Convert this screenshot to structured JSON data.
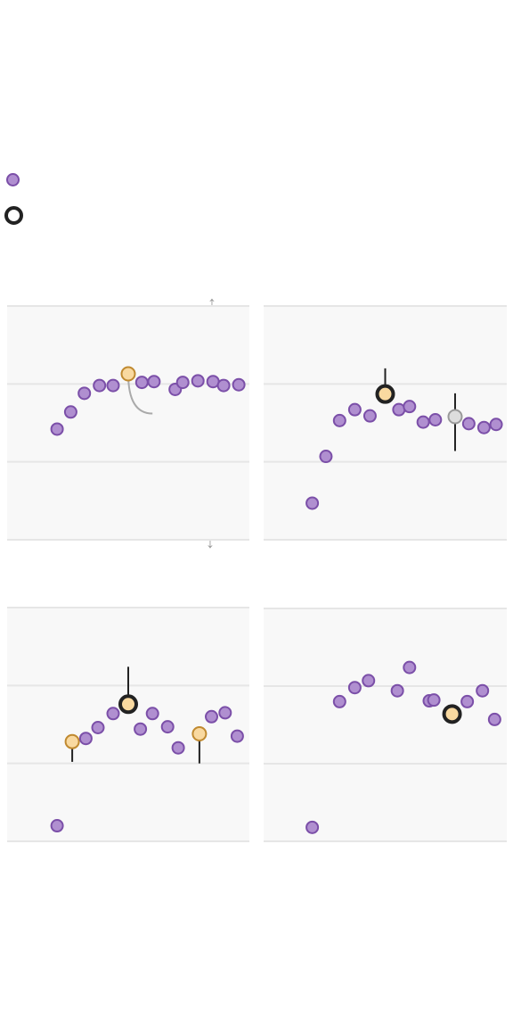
{
  "legend": {
    "items": [
      {
        "icon": "purple-dot-icon",
        "label": ""
      },
      {
        "icon": "black-ring-icon",
        "label": ""
      }
    ]
  },
  "colors": {
    "point_fill": "#b08fd0",
    "point_stroke": "#7b4fa8",
    "highlight_fill": "#f9d9a0",
    "highlight_stroke": "#c08a30",
    "ring_stroke": "#222222",
    "grey_fill": "#dddddd",
    "grey_stroke": "#999999",
    "panel_bg": "#f8f8f8",
    "grid": "#e6e6e6"
  },
  "chart_data": [
    {
      "type": "scatter",
      "panel": "top-left",
      "title": "",
      "xlim": [
        0,
        16
      ],
      "ylim": [
        0,
        3
      ],
      "grid": true,
      "points": [
        {
          "x": 3.3,
          "y": 1.42
        },
        {
          "x": 4.2,
          "y": 1.64
        },
        {
          "x": 5.1,
          "y": 1.88
        },
        {
          "x": 6.1,
          "y": 1.98
        },
        {
          "x": 7.0,
          "y": 1.98
        },
        {
          "x": 8.0,
          "y": 2.13,
          "style": "highlight"
        },
        {
          "x": 8.9,
          "y": 2.02
        },
        {
          "x": 9.7,
          "y": 2.03
        },
        {
          "x": 11.1,
          "y": 1.93
        },
        {
          "x": 11.6,
          "y": 2.02
        },
        {
          "x": 12.6,
          "y": 2.04
        },
        {
          "x": 13.6,
          "y": 2.03
        },
        {
          "x": 14.3,
          "y": 1.98
        },
        {
          "x": 15.3,
          "y": 1.99
        }
      ],
      "annotations": [
        {
          "type": "curve",
          "from": {
            "x": 8.0,
            "y": 2.13
          },
          "to": {
            "x": 9.6,
            "y": 1.62
          }
        }
      ]
    },
    {
      "type": "scatter",
      "panel": "top-right",
      "title": "",
      "xlim": [
        0,
        16
      ],
      "ylim": [
        0,
        3
      ],
      "grid": true,
      "points": [
        {
          "x": 3.2,
          "y": 0.47
        },
        {
          "x": 4.1,
          "y": 1.07
        },
        {
          "x": 5.0,
          "y": 1.53
        },
        {
          "x": 6.0,
          "y": 1.67
        },
        {
          "x": 7.0,
          "y": 1.59
        },
        {
          "x": 8.0,
          "y": 1.87,
          "style": "ring",
          "error": [
            1.87,
            2.2
          ]
        },
        {
          "x": 8.9,
          "y": 1.67
        },
        {
          "x": 9.6,
          "y": 1.71
        },
        {
          "x": 10.5,
          "y": 1.51
        },
        {
          "x": 11.3,
          "y": 1.54
        },
        {
          "x": 12.6,
          "y": 1.58,
          "style": "grey",
          "error": [
            1.14,
            1.88
          ]
        },
        {
          "x": 13.5,
          "y": 1.49
        },
        {
          "x": 14.5,
          "y": 1.44
        },
        {
          "x": 15.3,
          "y": 1.48
        }
      ]
    },
    {
      "type": "scatter",
      "panel": "bottom-left",
      "title": "",
      "xlim": [
        0,
        16
      ],
      "ylim": [
        0,
        3
      ],
      "grid": true,
      "points": [
        {
          "x": 3.3,
          "y": 0.2
        },
        {
          "x": 4.3,
          "y": 1.28,
          "style": "highlight",
          "error": [
            1.02,
            1.28
          ]
        },
        {
          "x": 5.2,
          "y": 1.32
        },
        {
          "x": 6.0,
          "y": 1.46
        },
        {
          "x": 7.0,
          "y": 1.64
        },
        {
          "x": 8.0,
          "y": 1.76,
          "style": "ring",
          "error": [
            1.76,
            2.24
          ]
        },
        {
          "x": 8.8,
          "y": 1.44
        },
        {
          "x": 9.6,
          "y": 1.64
        },
        {
          "x": 10.6,
          "y": 1.47
        },
        {
          "x": 11.3,
          "y": 1.2
        },
        {
          "x": 12.7,
          "y": 1.38,
          "style": "highlight",
          "error": [
            1.0,
            1.38
          ]
        },
        {
          "x": 13.5,
          "y": 1.6
        },
        {
          "x": 14.4,
          "y": 1.65
        },
        {
          "x": 15.2,
          "y": 1.35
        }
      ]
    },
    {
      "type": "scatter",
      "panel": "bottom-right",
      "title": "",
      "xlim": [
        0,
        16
      ],
      "ylim": [
        0,
        3
      ],
      "grid": true,
      "points": [
        {
          "x": 3.2,
          "y": 0.18
        },
        {
          "x": 5.0,
          "y": 1.8
        },
        {
          "x": 6.0,
          "y": 1.98
        },
        {
          "x": 6.9,
          "y": 2.07
        },
        {
          "x": 8.8,
          "y": 1.94
        },
        {
          "x": 9.6,
          "y": 2.24
        },
        {
          "x": 10.9,
          "y": 1.81
        },
        {
          "x": 11.2,
          "y": 1.82
        },
        {
          "x": 12.4,
          "y": 1.64,
          "style": "ring"
        },
        {
          "x": 13.4,
          "y": 1.8
        },
        {
          "x": 14.4,
          "y": 1.94
        },
        {
          "x": 15.2,
          "y": 1.57
        }
      ]
    }
  ]
}
